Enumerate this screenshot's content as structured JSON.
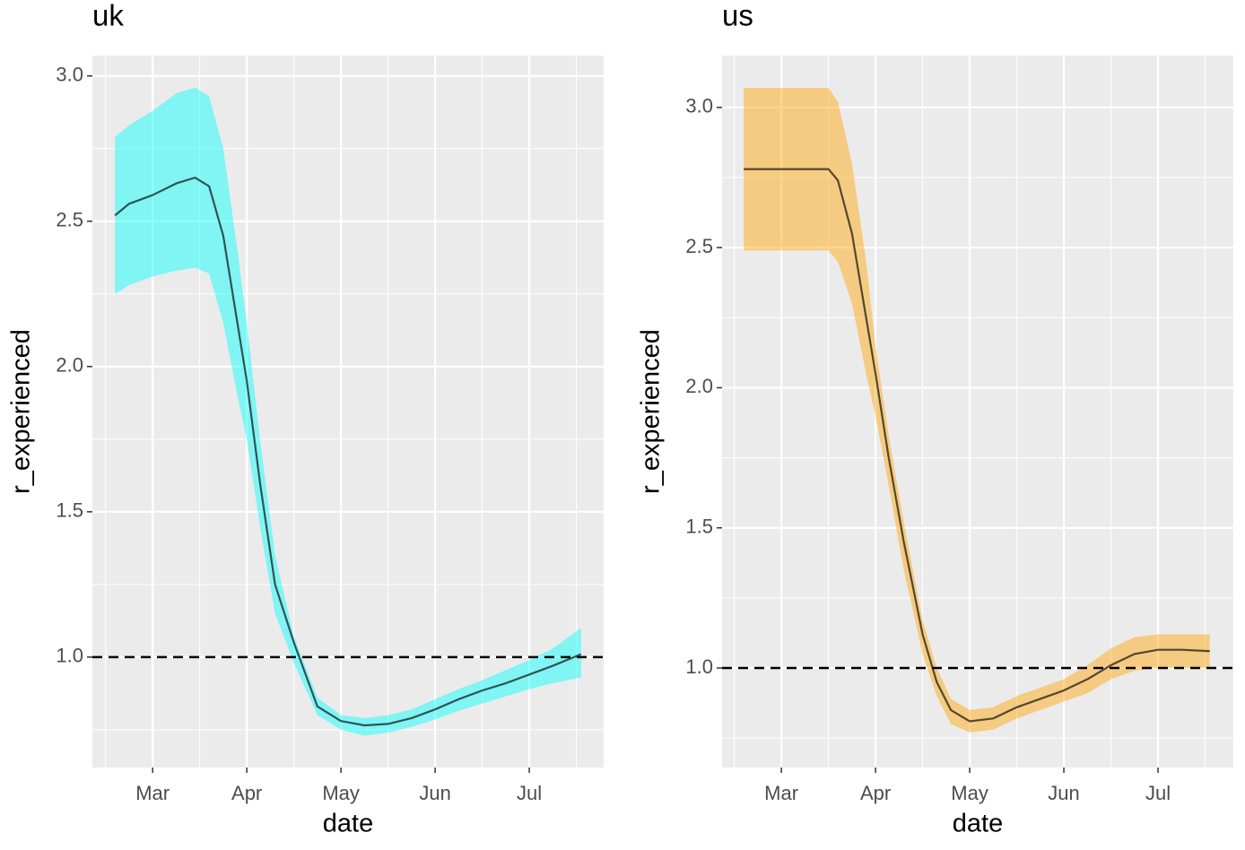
{
  "chart_data": [
    {
      "type": "line",
      "title": "uk",
      "x_label": "date",
      "y_label": "r_experienced",
      "x": [
        2.6,
        2.75,
        3.0,
        3.25,
        3.45,
        3.6,
        3.75,
        3.9,
        4.0,
        4.14,
        4.3,
        4.5,
        4.75,
        5.0,
        5.25,
        5.5,
        5.75,
        6.0,
        6.25,
        6.5,
        6.75,
        7.0,
        7.25,
        7.55
      ],
      "values": [
        2.52,
        2.56,
        2.59,
        2.63,
        2.65,
        2.62,
        2.45,
        2.15,
        1.95,
        1.6,
        1.25,
        1.05,
        0.83,
        0.78,
        0.765,
        0.77,
        0.79,
        0.82,
        0.855,
        0.885,
        0.91,
        0.94,
        0.97,
        1.01
      ],
      "upper": [
        2.79,
        2.83,
        2.88,
        2.94,
        2.96,
        2.93,
        2.75,
        2.4,
        2.15,
        1.75,
        1.35,
        1.07,
        0.86,
        0.8,
        0.79,
        0.8,
        0.82,
        0.855,
        0.89,
        0.92,
        0.955,
        0.99,
        1.03,
        1.1
      ],
      "lower": [
        2.25,
        2.28,
        2.31,
        2.33,
        2.34,
        2.32,
        2.15,
        1.9,
        1.75,
        1.45,
        1.15,
        0.98,
        0.8,
        0.75,
        0.73,
        0.74,
        0.76,
        0.785,
        0.815,
        0.84,
        0.865,
        0.89,
        0.91,
        0.93
      ],
      "color": "#00ffff",
      "line_color": "#000000",
      "hline": 1,
      "xlim": [
        2.36,
        7.79
      ],
      "ylim": [
        0.62,
        3.07
      ],
      "xticks": [
        {
          "value": 3,
          "label": "Mar"
        },
        {
          "value": 4,
          "label": "Apr"
        },
        {
          "value": 5,
          "label": "May"
        },
        {
          "value": 6,
          "label": "Jun"
        },
        {
          "value": 7,
          "label": "Jul"
        }
      ],
      "yticks": [
        {
          "value": 1,
          "label": "1.0"
        },
        1.5,
        {
          "value": 2,
          "label": "2.0"
        },
        2.5,
        {
          "value": 3,
          "label": "3.0"
        }
      ],
      "grid": true
    },
    {
      "type": "line",
      "title": "us",
      "x_label": "date",
      "y_label": "r_experienced",
      "x": [
        2.6,
        3.0,
        3.5,
        3.6,
        3.75,
        3.9,
        4.0,
        4.14,
        4.3,
        4.5,
        4.65,
        4.8,
        5.0,
        5.25,
        5.5,
        5.75,
        6.0,
        6.25,
        6.5,
        6.75,
        7.0,
        7.25,
        7.55
      ],
      "values": [
        2.78,
        2.78,
        2.78,
        2.74,
        2.55,
        2.25,
        2.05,
        1.75,
        1.45,
        1.12,
        0.95,
        0.85,
        0.81,
        0.82,
        0.86,
        0.89,
        0.92,
        0.96,
        1.01,
        1.05,
        1.065,
        1.065,
        1.06
      ],
      "upper": [
        3.07,
        3.07,
        3.07,
        3.02,
        2.8,
        2.45,
        2.15,
        1.83,
        1.52,
        1.17,
        1.0,
        0.89,
        0.85,
        0.86,
        0.9,
        0.93,
        0.96,
        1.01,
        1.07,
        1.11,
        1.12,
        1.12,
        1.12
      ],
      "lower": [
        2.49,
        2.49,
        2.49,
        2.45,
        2.3,
        2.05,
        1.9,
        1.65,
        1.35,
        1.05,
        0.9,
        0.8,
        0.77,
        0.78,
        0.82,
        0.85,
        0.88,
        0.91,
        0.96,
        0.99,
        1.0,
        1.0,
        1.0
      ],
      "color": "#ffa500",
      "line_color": "#000000",
      "hline": 1,
      "xlim": [
        2.37,
        7.8
      ],
      "ylim": [
        0.645,
        3.185
      ],
      "xticks": [
        {
          "value": 3,
          "label": "Mar"
        },
        {
          "value": 4,
          "label": "Apr"
        },
        {
          "value": 5,
          "label": "May"
        },
        {
          "value": 6,
          "label": "Jun"
        },
        {
          "value": 7,
          "label": "Jul"
        }
      ],
      "yticks": [
        {
          "value": 1,
          "label": "1.0"
        },
        1.5,
        {
          "value": 2,
          "label": "2.0"
        },
        2.5,
        {
          "value": 3,
          "label": "3.0"
        }
      ],
      "grid": true
    }
  ]
}
